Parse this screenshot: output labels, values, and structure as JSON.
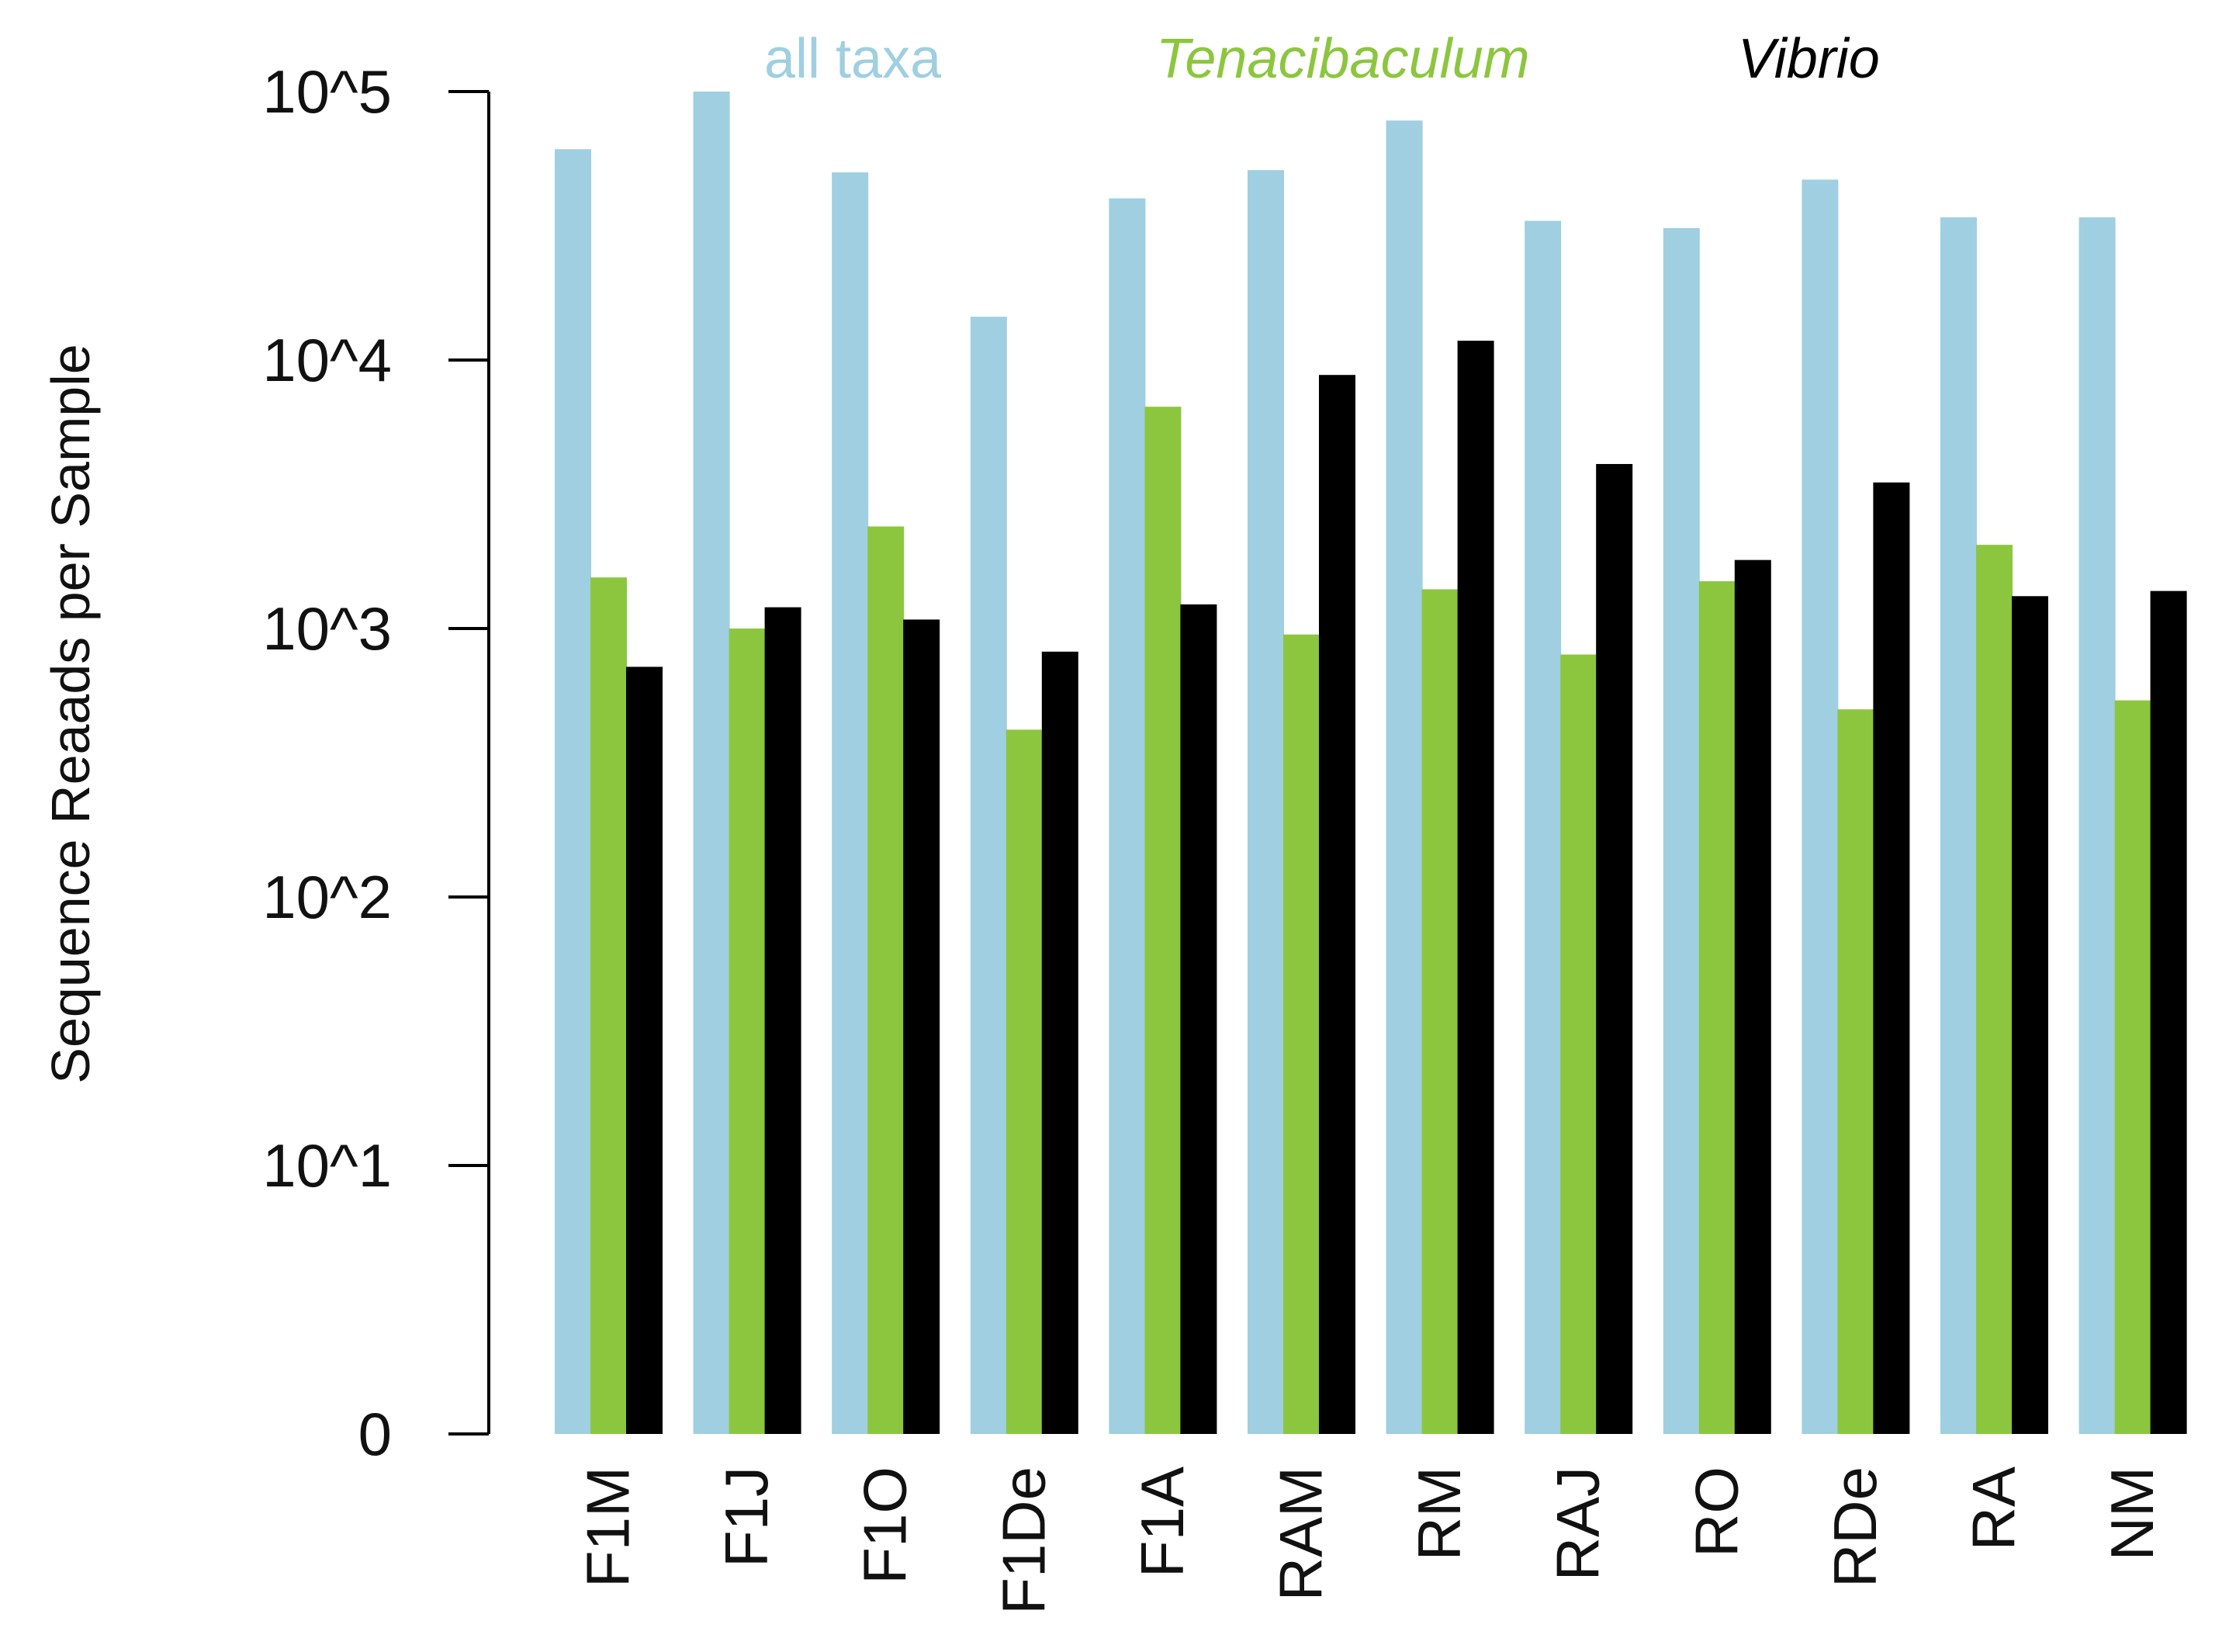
{
  "chart_data": {
    "type": "bar",
    "title": "",
    "xlabel": "",
    "ylabel": "Sequence Reaads per Sample",
    "yscale": "log10",
    "ylim": [
      1,
      100000
    ],
    "yticks": [
      {
        "value": 1,
        "label": "0"
      },
      {
        "value": 10,
        "label": "10^1"
      },
      {
        "value": 100,
        "label": "10^2"
      },
      {
        "value": 1000,
        "label": "10^3"
      },
      {
        "value": 10000,
        "label": "10^4"
      },
      {
        "value": 100000,
        "label": "10^5"
      }
    ],
    "categories": [
      "F1M",
      "F1J",
      "F1O",
      "F1De",
      "F1A",
      "RAM",
      "RM",
      "RAJ",
      "RO",
      "RDe",
      "RA",
      "NM"
    ],
    "legend_position": "top",
    "series": [
      {
        "name": "all taxa",
        "color": "#9fcfe0",
        "italic": false,
        "values": [
          61000,
          100000,
          50000,
          14500,
          40000,
          51000,
          78000,
          33000,
          31000,
          47000,
          34000,
          34000
        ]
      },
      {
        "name": "Tenacibaculum",
        "color": "#8cc63f",
        "italic": true,
        "values": [
          1550,
          1000,
          2400,
          420,
          6700,
          950,
          1400,
          800,
          1500,
          500,
          2050,
          540
        ]
      },
      {
        "name": "Vibrio",
        "color": "#000000",
        "italic": true,
        "values": [
          720,
          1200,
          1080,
          820,
          1230,
          8800,
          11800,
          4100,
          1800,
          3500,
          1320,
          1380
        ]
      }
    ]
  }
}
